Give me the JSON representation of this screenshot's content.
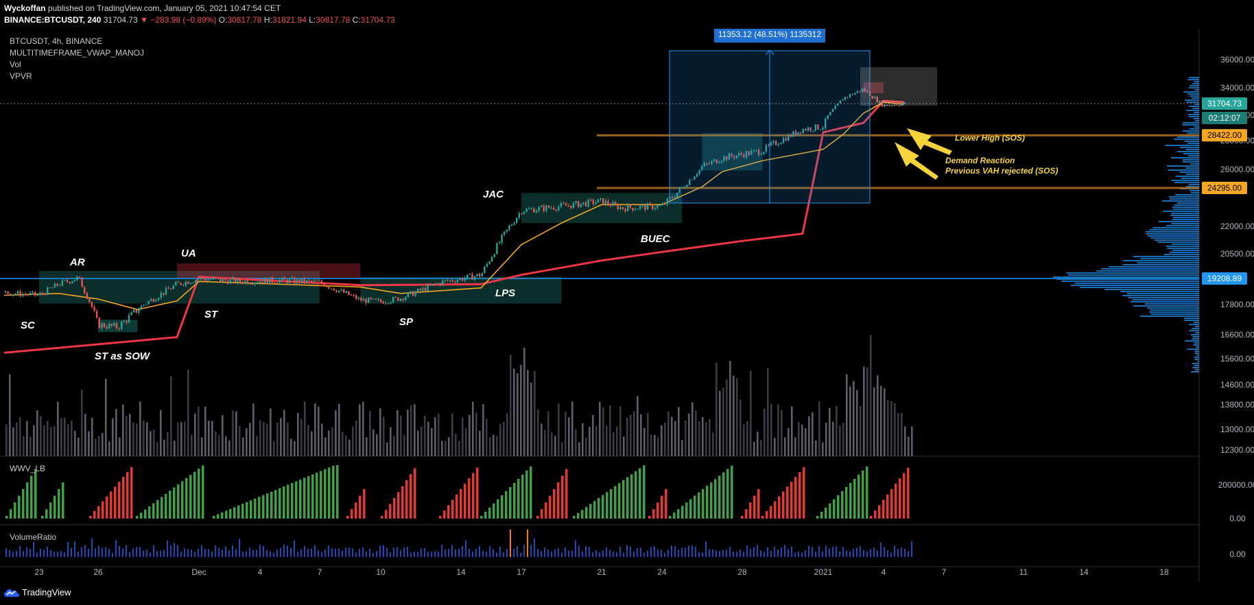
{
  "header": {
    "author": "Wyckoffan",
    "published": "published on TradingView.com, January 05, 2021 10:47:54 CET",
    "symbol_line": "BINANCE:BTCUSDT, 240",
    "last": "31704.73",
    "change": "▼ −283.98 (−0.89%)",
    "o_label": "O:",
    "o": "30817.78",
    "h_label": "H:",
    "h": "31821.94",
    "l_label": "L:",
    "l": "30817.78",
    "c_label": "C:",
    "c": "31704.73"
  },
  "legend": {
    "symbol": "BTCUSDT, 4h, BINANCE",
    "indicator1": "MULTITIMEFRAME_VWAP_MANOJ",
    "indicator2": "Vol",
    "indicator3": "VPVR",
    "pane2_title": "WWV_LB",
    "pane3_title": "VolumeRatio"
  },
  "footer": {
    "brand": "TradingView"
  },
  "colors": {
    "bull": "#26a69a",
    "bear": "#ef5350",
    "vwap_fast": "#f5a623",
    "vwap_slow": "#f23645",
    "level_line": "#2196f3",
    "annotation": "#f5d33b"
  },
  "chart_data": {
    "type": "line",
    "title": "BTCUSDT, 4h, BINANCE",
    "x_tick_labels": [
      "23",
      "26",
      "Dec",
      "4",
      "7",
      "10",
      "14",
      "17",
      "21",
      "24",
      "28",
      "2021",
      "4",
      "7",
      "11",
      "14",
      "18"
    ],
    "y_tick_labels": [
      "36000.00",
      "34000.00",
      "30000.00",
      "28000.00",
      "26000.00",
      "22000.00",
      "20500.00",
      "17800.00",
      "16600.00",
      "15600.00",
      "14600.00",
      "13800.00",
      "13000.00",
      "12300.00"
    ],
    "y_range": [
      12300,
      36000
    ],
    "price_path": {
      "name": "BTCUSDT close (approx.)",
      "x": [
        "Nov 21",
        "Nov 23",
        "Nov 24",
        "Nov 25",
        "Nov 26",
        "Nov 27",
        "Nov 28",
        "Nov 30",
        "Dec 1",
        "Dec 3",
        "Dec 5",
        "Dec 7",
        "Dec 9",
        "Dec 10",
        "Dec 11",
        "Dec 13",
        "Dec 15",
        "Dec 16",
        "Dec 17",
        "Dec 19",
        "Dec 21",
        "Dec 22",
        "Dec 24",
        "Dec 25",
        "Dec 26",
        "Dec 27",
        "Dec 29",
        "Dec 31",
        "Jan 1",
        "Jan 2",
        "Jan 3",
        "Jan 4",
        "Jan 5"
      ],
      "y": [
        18450,
        18300,
        18900,
        19250,
        17000,
        16900,
        17600,
        18900,
        19200,
        19050,
        19100,
        19000,
        18050,
        17950,
        18150,
        19000,
        19400,
        21300,
        22950,
        23200,
        23500,
        23100,
        23200,
        24300,
        26200,
        26800,
        27300,
        28900,
        29100,
        32500,
        33800,
        31400,
        31704
      ]
    },
    "vwap_fast": {
      "name": "MULTITIMEFRAME_VWAP_MANOJ",
      "x": [
        "Nov 21",
        "Nov 24",
        "Nov 26",
        "Nov 28",
        "Nov 30",
        "Dec 1",
        "Dec 5",
        "Dec 9",
        "Dec 11",
        "Dec 15",
        "Dec 17",
        "Dec 19",
        "Dec 21",
        "Dec 24",
        "Dec 26",
        "Dec 27",
        "Dec 29",
        "Jan 1",
        "Jan 2",
        "Jan 3",
        "Jan 4",
        "Jan 5"
      ],
      "y": [
        18300,
        18400,
        18100,
        17600,
        18000,
        19050,
        18900,
        18750,
        18400,
        18700,
        21000,
        22200,
        23300,
        23300,
        24400,
        25800,
        26600,
        27400,
        28500,
        30300,
        31900,
        31600
      ]
    },
    "vwap_slow": {
      "name": "MULTITIMEFRAME_VWAP_MANOJ",
      "x": [
        "Nov 21",
        "Nov 30",
        "Dec 1",
        "Dec 9",
        "Dec 15",
        "Dec 17",
        "Dec 21",
        "Dec 24",
        "Dec 28",
        "Dec 31",
        "Jan 1",
        "Jan 3",
        "Jan 4",
        "Jan 5"
      ],
      "y": [
        15850,
        16500,
        19300,
        18850,
        18900,
        19400,
        20150,
        20600,
        21200,
        21600,
        28650,
        29400,
        32100,
        31900
      ]
    },
    "horizontal_levels": [
      {
        "label": "28422.00",
        "value": 28422
      },
      {
        "label": "24295.00",
        "value": 24295
      },
      {
        "label": "19208.89",
        "value": 19208.89
      }
    ],
    "last_price_label": "31704.73",
    "countdown_label": "02:12:07",
    "measure_label": "11353.12 (48.51%) 1135312",
    "wyckoff_labels": [
      "SC",
      "AR",
      "ST as SOW",
      "UA",
      "ST",
      "SP",
      "LPS",
      "JAC",
      "BUEC"
    ],
    "annotations": [
      {
        "text": "Lower High (SOS)"
      },
      {
        "text": "Demand Reaction\nPrevious VAH rejected (SOS)"
      }
    ],
    "pane2": {
      "name": "WWV_LB",
      "y_tick_labels": [
        "200000.00",
        "0.00"
      ]
    },
    "pane3": {
      "name": "VolumeRatio",
      "y_tick_labels": [
        "0.00"
      ]
    }
  }
}
